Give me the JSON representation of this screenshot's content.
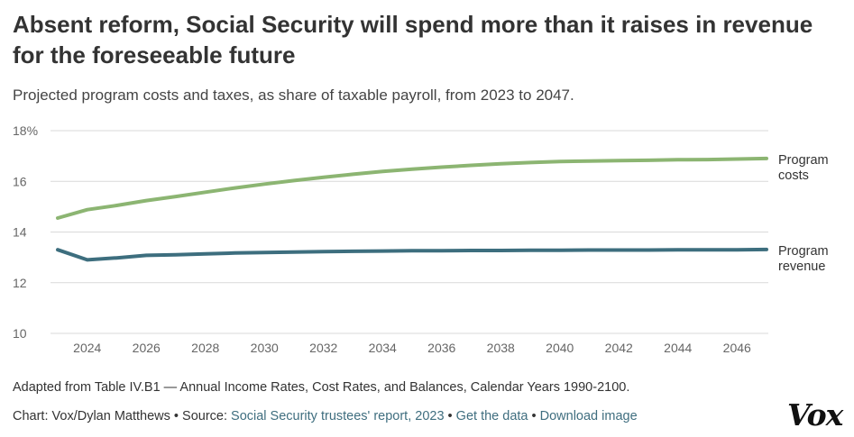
{
  "header": {
    "title": "Absent reform, Social Security will spend more than it raises in revenue for the foreseeable future",
    "subtitle": "Projected program costs and taxes, as share of taxable payroll, from 2023 to 2047."
  },
  "footer": {
    "note": "Adapted from Table IV.B1 — Annual Income Rates, Cost Rates, and Balances, Calendar Years 1990-2100.",
    "chart_credit": "Chart: Vox/Dylan Matthews",
    "sep1": " • Source: ",
    "source_link": "Social Security trustees' report, 2023",
    "sep2": " • ",
    "get_data": "Get the data",
    "sep3": " • ",
    "download_image": "Download image",
    "logo": "Vox"
  },
  "chart_data": {
    "type": "line",
    "title": "Absent reform, Social Security will spend more than it raises in revenue for the foreseeable future",
    "subtitle": "Projected program costs and taxes, as share of taxable payroll, from 2023 to 2047.",
    "xlabel": "",
    "ylabel": "",
    "x": [
      2023,
      2024,
      2025,
      2026,
      2027,
      2028,
      2029,
      2030,
      2031,
      2032,
      2033,
      2034,
      2035,
      2036,
      2037,
      2038,
      2039,
      2040,
      2041,
      2042,
      2043,
      2044,
      2045,
      2046,
      2047
    ],
    "xlim": [
      2023,
      2047
    ],
    "ylim": [
      10,
      18
    ],
    "x_ticks": [
      "2024",
      "2026",
      "2028",
      "2030",
      "2032",
      "2034",
      "2036",
      "2038",
      "2040",
      "2042",
      "2044",
      "2046"
    ],
    "y_ticks": [
      "18%",
      "16",
      "14",
      "12",
      "10"
    ],
    "grid": "horizontal",
    "series": [
      {
        "name": "Program costs",
        "label_lines": [
          "Program",
          "costs"
        ],
        "color": "#8cb572",
        "values": [
          14.55,
          14.88,
          15.05,
          15.24,
          15.4,
          15.57,
          15.74,
          15.89,
          16.03,
          16.16,
          16.28,
          16.39,
          16.48,
          16.56,
          16.63,
          16.69,
          16.74,
          16.78,
          16.8,
          16.82,
          16.83,
          16.85,
          16.86,
          16.88,
          16.9
        ]
      },
      {
        "name": "Program revenue",
        "label_lines": [
          "Program",
          "revenue"
        ],
        "color": "#3d6e7e",
        "values": [
          13.3,
          12.9,
          12.98,
          13.08,
          13.1,
          13.14,
          13.17,
          13.19,
          13.21,
          13.23,
          13.24,
          13.25,
          13.26,
          13.26,
          13.27,
          13.27,
          13.28,
          13.28,
          13.29,
          13.29,
          13.29,
          13.3,
          13.3,
          13.3,
          13.31
        ]
      }
    ]
  }
}
